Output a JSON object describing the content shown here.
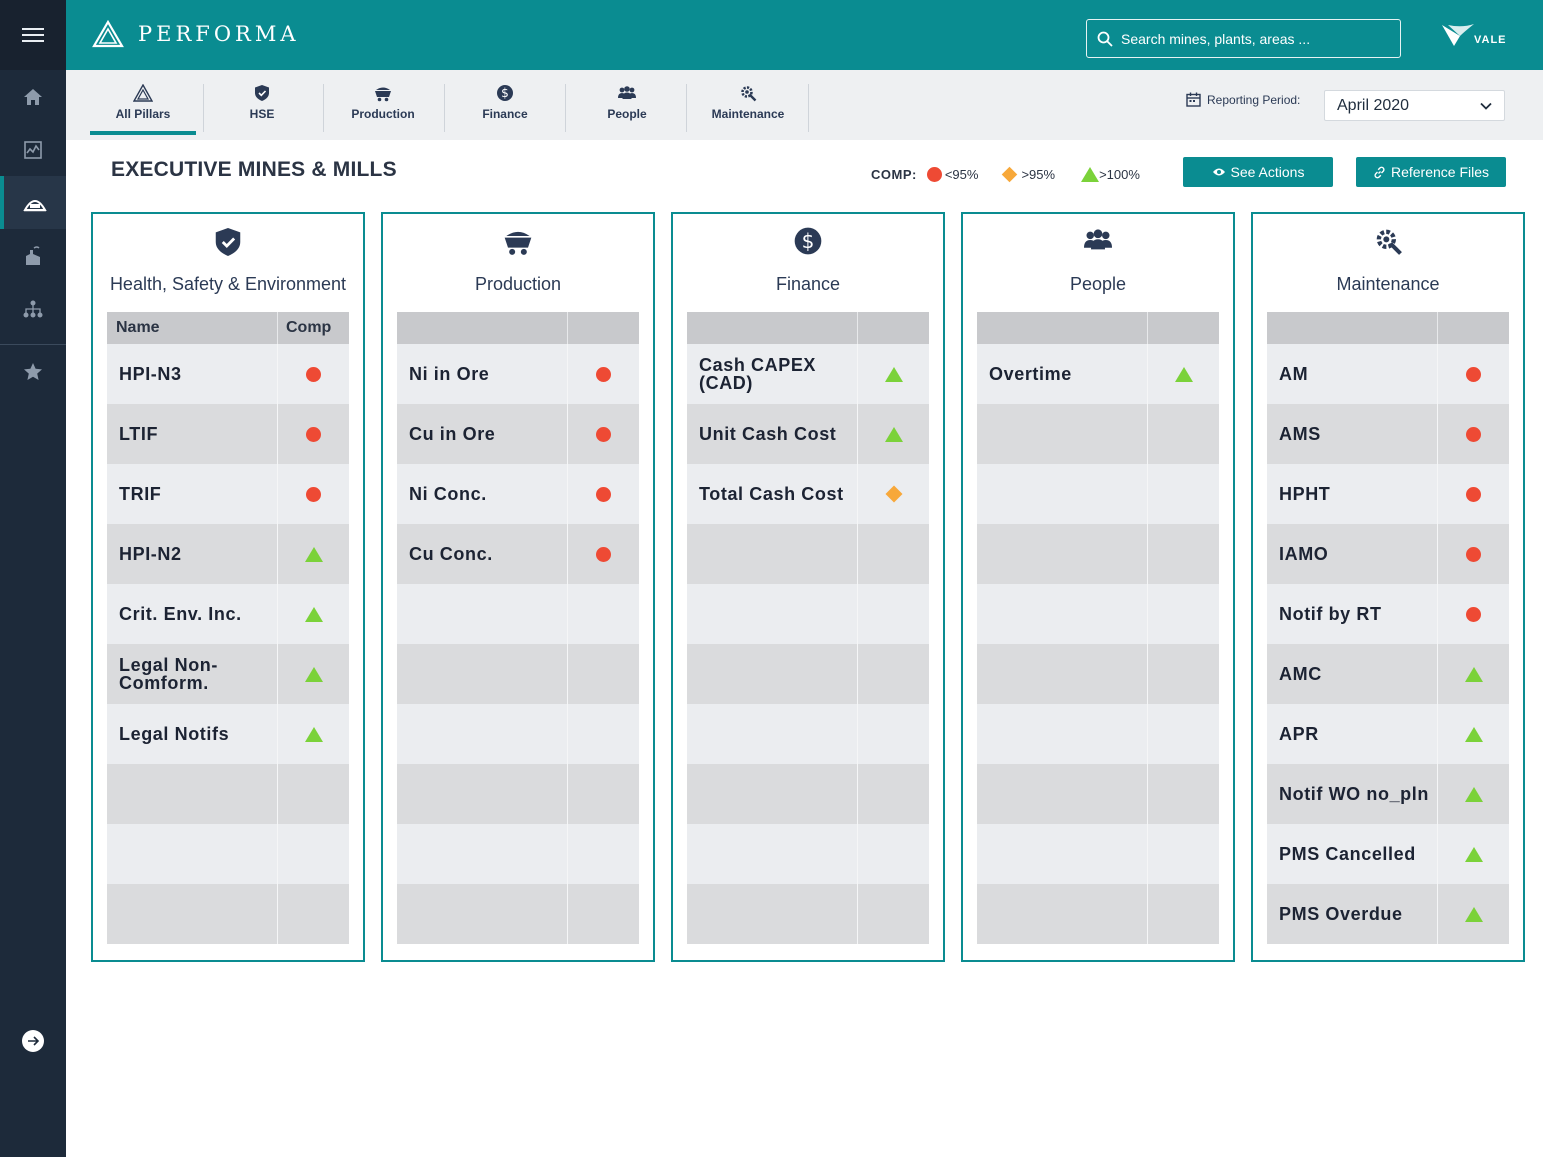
{
  "app": {
    "name": "PERFORMA",
    "partner_logo_text": "VALE"
  },
  "search": {
    "placeholder": "Search mines, plants, areas ..."
  },
  "sidebar": {
    "items": [
      {
        "icon": "home-icon"
      },
      {
        "icon": "analytics-icon"
      },
      {
        "icon": "mine-icon",
        "active": true
      },
      {
        "icon": "plant-icon"
      },
      {
        "icon": "hierarchy-icon"
      }
    ],
    "favorites_icon": "star-icon",
    "expand_icon": "arrow-right-circle-icon"
  },
  "tabs": [
    {
      "label": "All Pillars",
      "icon": "pillars-icon",
      "active": true
    },
    {
      "label": "HSE",
      "icon": "shield-check-icon"
    },
    {
      "label": "Production",
      "icon": "mine-cart-icon"
    },
    {
      "label": "Finance",
      "icon": "dollar-icon"
    },
    {
      "label": "People",
      "icon": "people-icon"
    },
    {
      "label": "Maintenance",
      "icon": "gear-wrench-icon"
    }
  ],
  "reporting_period": {
    "label": "Reporting Period:",
    "value": "April 2020"
  },
  "page": {
    "title": "EXECUTIVE MINES & MILLS"
  },
  "legend": {
    "title": "COMP:",
    "items": [
      {
        "symbol": "dot",
        "label": "<95%",
        "color": "#ee4a34"
      },
      {
        "symbol": "diamond",
        "label": ">95%",
        "color": "#f7a83a"
      },
      {
        "symbol": "tri",
        "label": ">100%",
        "color": "#7bd23a"
      }
    ]
  },
  "actions": {
    "see_actions": "See Actions",
    "reference_files": "Reference Files"
  },
  "pillars": [
    {
      "title": "Health, Safety & Environment",
      "icon": "shield-check-icon",
      "header": {
        "name": "Name",
        "comp": "Comp"
      },
      "rows": [
        {
          "name": "HPI-N3",
          "status": "dot"
        },
        {
          "name": "LTIF",
          "status": "dot"
        },
        {
          "name": "TRIF",
          "status": "dot"
        },
        {
          "name": "HPI-N2",
          "status": "tri"
        },
        {
          "name": "Crit. Env. Inc.",
          "status": "tri"
        },
        {
          "name": "Legal Non-Comform.",
          "status": "tri"
        },
        {
          "name": "Legal Notifs",
          "status": "tri"
        }
      ]
    },
    {
      "title": "Production",
      "icon": "mine-cart-icon",
      "header": {
        "name": "",
        "comp": ""
      },
      "rows": [
        {
          "name": "Ni in Ore",
          "status": "dot"
        },
        {
          "name": "Cu in Ore",
          "status": "dot"
        },
        {
          "name": "Ni Conc.",
          "status": "dot"
        },
        {
          "name": "Cu Conc.",
          "status": "dot"
        }
      ]
    },
    {
      "title": "Finance",
      "icon": "dollar-icon",
      "header": {
        "name": "",
        "comp": ""
      },
      "rows": [
        {
          "name": "Cash CAPEX (CAD)",
          "status": "tri"
        },
        {
          "name": "Unit Cash Cost",
          "status": "tri"
        },
        {
          "name": "Total Cash Cost",
          "status": "diamond"
        }
      ]
    },
    {
      "title": "People",
      "icon": "people-icon",
      "header": {
        "name": "",
        "comp": ""
      },
      "rows": [
        {
          "name": "Overtime",
          "status": "tri"
        }
      ]
    },
    {
      "title": "Maintenance",
      "icon": "gear-wrench-icon",
      "header": {
        "name": "",
        "comp": ""
      },
      "rows": [
        {
          "name": "AM",
          "status": "dot"
        },
        {
          "name": "AMS",
          "status": "dot"
        },
        {
          "name": "HPHT",
          "status": "dot"
        },
        {
          "name": "IAMO",
          "status": "dot"
        },
        {
          "name": "Notif by RT",
          "status": "dot"
        },
        {
          "name": "AMC",
          "status": "tri"
        },
        {
          "name": "APR",
          "status": "tri"
        },
        {
          "name": "Notif WO no_pln",
          "status": "tri"
        },
        {
          "name": "PMS Cancelled",
          "status": "tri"
        },
        {
          "name": "PMS Overdue",
          "status": "tri"
        }
      ]
    }
  ]
}
